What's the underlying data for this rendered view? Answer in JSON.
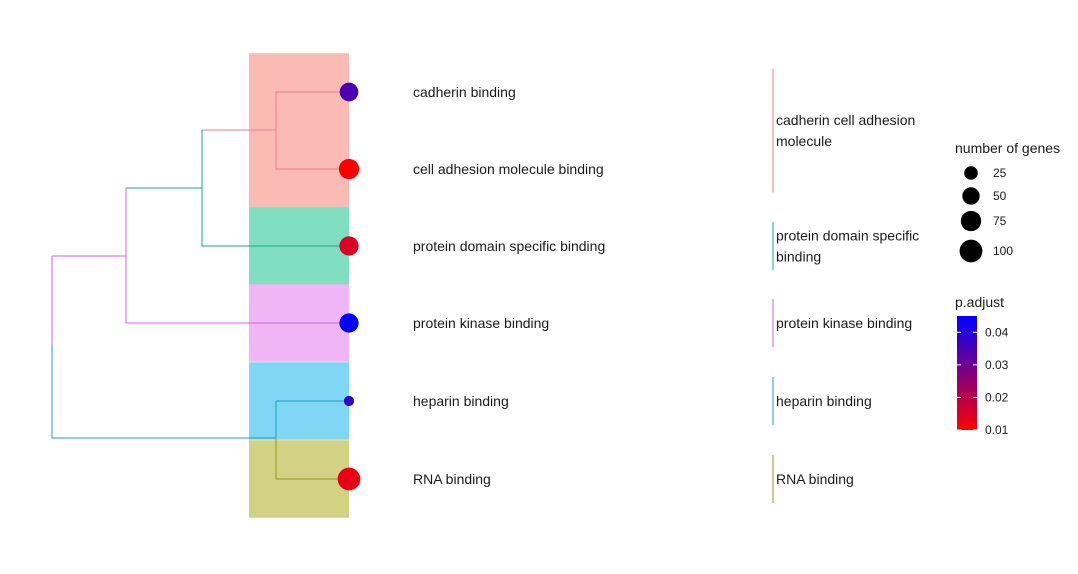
{
  "chart_data": {
    "type": "treeplot",
    "terms": [
      {
        "label": "cadherin binding",
        "count": 60,
        "p_adjust": 0.035,
        "cluster": 0
      },
      {
        "label": "cell adhesion molecule binding",
        "count": 75,
        "p_adjust": 0.01,
        "cluster": 0
      },
      {
        "label": "protein domain specific binding",
        "count": 65,
        "p_adjust": 0.015,
        "cluster": 1
      },
      {
        "label": "protein kinase binding",
        "count": 65,
        "p_adjust": 0.045,
        "cluster": 2
      },
      {
        "label": "heparin binding",
        "count": 10,
        "p_adjust": 0.038,
        "cluster": 3
      },
      {
        "label": "RNA binding",
        "count": 100,
        "p_adjust": 0.013,
        "cluster": 4
      }
    ],
    "clusters": [
      {
        "label": "cadherin cell adhesion molecule",
        "band_color": "#FABBB4",
        "branch_color": "#F07F7F"
      },
      {
        "label": "protein domain specific binding",
        "band_color": "#7FDFC0",
        "branch_color": "#16A885"
      },
      {
        "label": "protein kinase binding",
        "band_color": "#F0B5F5",
        "branch_color": "#D45FDB"
      },
      {
        "label": "heparin binding",
        "band_color": "#80D6F5",
        "branch_color": "#16A3C6"
      },
      {
        "label": "RNA binding",
        "band_color": "#D1D283",
        "branch_color": "#9A9A14"
      }
    ],
    "tree": {
      "cadherin_cam_color": "#F07F7F",
      "top_group_color": "#16A885",
      "upper_group_color": "#D45FDB",
      "root_color": "#16A3C6"
    },
    "size_legend": {
      "title": "number of genes",
      "values": [
        25,
        50,
        75,
        100
      ],
      "labels": [
        "25",
        "50",
        "75",
        "100"
      ]
    },
    "color_legend": {
      "title": "p.adjust",
      "min": 0.01,
      "max": 0.045,
      "ticks": [
        0.01,
        0.02,
        0.03,
        0.04
      ],
      "labels": [
        "0.01",
        "0.02",
        "0.03",
        "0.04"
      ],
      "low_color": "#FF0000",
      "high_color": "#0000FF"
    }
  }
}
